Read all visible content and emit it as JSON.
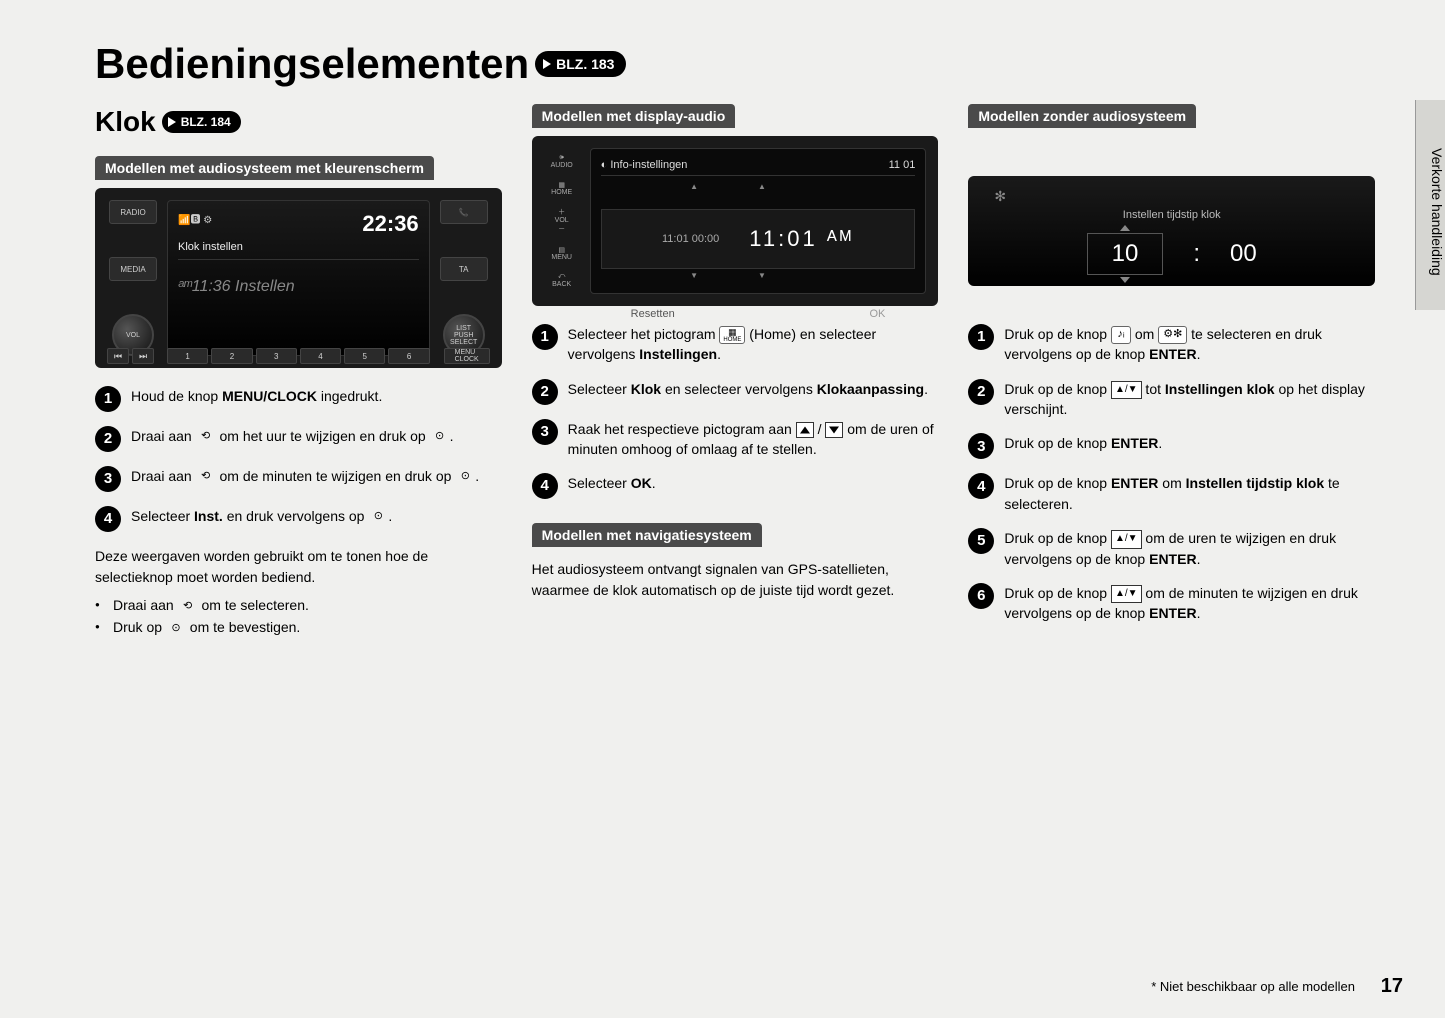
{
  "pageTitle": "Bedieningselementen",
  "pageRefMain": "BLZ. 183",
  "subTitle": "Klok",
  "pageRefSub": "BLZ. 184",
  "sidebarTab": "Verkorte handleiding",
  "footnote": "* Niet beschikbaar op alle modellen",
  "pageNumber": "17",
  "col1": {
    "sectionLabel": "Modellen met audiosysteem met kleurenscherm",
    "device": {
      "leftBtn1": "RADIO",
      "leftBtn2": "MEDIA",
      "leftKnob": "VOL",
      "rightBtn1": "📞",
      "rightBtn2": "TA",
      "rightKnob": "LIST\nPUSH\nSELECT",
      "clock": "22:36",
      "screenTitle": "Klok instellen",
      "midTime": "ᵃᵐ11:36  Instellen",
      "presets": [
        "1",
        "2",
        "3",
        "4",
        "5",
        "6"
      ],
      "menuBtn": "MENU\nCLOCK"
    },
    "steps": [
      "Houd de knop <b>MENU/CLOCK</b> ingedrukt.",
      "Draai aan <span class='inline-icon nobord'>⟲</span> om het uur te wijzigen en druk op <span class='inline-icon nobord'>⊙</span>.",
      "Draai aan <span class='inline-icon nobord'>⟲</span> om de minuten te wijzigen en druk op <span class='inline-icon nobord'>⊙</span>.",
      "Selecteer <b>Inst.</b> en druk vervolgens op <span class='inline-icon nobord'>⊙</span>."
    ],
    "note": "Deze weergaven worden gebruikt om te tonen hoe de selectieknop moet worden bediend.",
    "bullets": [
      "Draai aan <span class='inline-icon nobord'>⟲</span> om te selecteren.",
      "Druk op <span class='inline-icon nobord'>⊙</span> om te bevestigen."
    ]
  },
  "col2": {
    "sectionLabel": "Modellen met display-audio",
    "device": {
      "sideLabels": [
        "🕪\nAUDIO",
        "▦\nHOME",
        "＋\nVOL\n－",
        "▤\nMENU",
        "⤺\nBACK"
      ],
      "topbarLeft": "◐  Info-instellingen",
      "topbarRight": "11 01",
      "midSmall": "11:01   00:00",
      "midBig": "11:01 ᴬᴹ",
      "botLeft": "Resetten",
      "botRight": "OK"
    },
    "steps": [
      "Selecteer het pictogram <span class='inline-icon home'>▦<span style='font-size:6px'>HOME</span></span> (Home) en selecteer vervolgens <b>Instellingen</b>.",
      "Selecteer <b>Klok</b> en selecteer vervolgens <b>Klokaanpassing</b>.",
      "Raak het respectieve pictogram aan <span class='tri-box up'></span> / <span class='tri-box down'></span> om de uren of minuten omhoog of omlaag af te stellen.",
      "Selecteer <b>OK</b>."
    ],
    "sectionLabel2": "Modellen met navigatiesysteem",
    "navNote": "Het audiosysteem ontvangt signalen van GPS-satellieten, waarmee de klok automatisch op de juiste tijd wordt gezet."
  },
  "col3": {
    "sectionLabel": "Modellen zonder audiosysteem",
    "device": {
      "label": "Instellen tijdstip klok",
      "hours": "10",
      "minutes": "00"
    },
    "steps": [
      "Druk op de knop <span class='inline-icon'>♪ᵢ</span> om <span class='inline-icon'>⚙✻</span> te selecteren en druk vervolgens op de knop <b>ENTER</b>.",
      "Druk op de knop <span class='tri-pair'>▲/▼</span> tot <b>Instellingen klok</b> op het display verschijnt.",
      "Druk op de knop <b>ENTER</b>.",
      "Druk op de knop <b>ENTER</b> om <b>Instellen tijdstip klok</b> te selecteren.",
      "Druk op de knop <span class='tri-pair'>▲/▼</span> om de uren te wijzigen en druk vervolgens op de knop <b>ENTER</b>.",
      "Druk op de knop <span class='tri-pair'>▲/▼</span> om de minuten te wijzigen en druk vervolgens op de knop <b>ENTER</b>."
    ]
  }
}
